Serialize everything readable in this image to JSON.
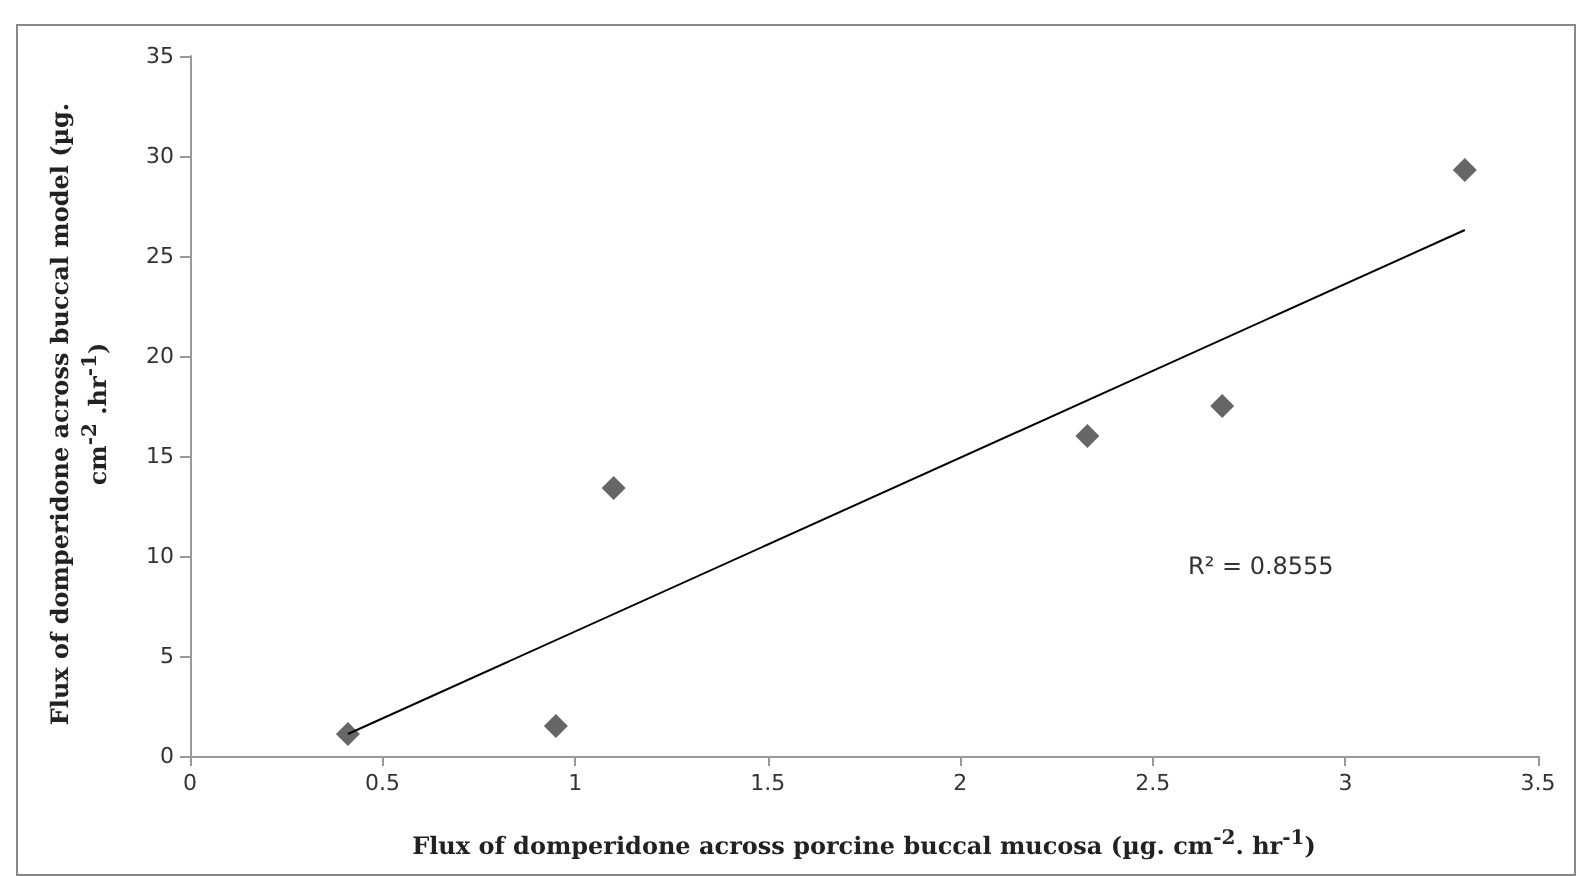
{
  "chart_data": {
    "type": "scatter",
    "xlabel": "Flux of domperidone across porcine buccal mucosa (µg. cm$^{-2}$. hr$^{-1}$)",
    "ylabel": "Flux of domperidone across buccal model (µg. cm$^{-2}$ .hr$^{-1}$)",
    "annotations": [
      "R² = 0.8555"
    ],
    "series": [
      {
        "color": "#404040",
        "marker": "diamond",
        "x": [
          0.41,
          0.95,
          1.1,
          2.33,
          2.68,
          3.31
        ],
        "values": [
          1.1,
          1.5,
          13.4,
          16,
          17.5,
          29.3
        ]
      },
      {
        "type": "line",
        "color": "#000000",
        "marker": "none",
        "line_style": "solid",
        "x": [
          0.41,
          3.31
        ],
        "values": [
          1.1,
          26.3
        ]
      }
    ],
    "xlim": [
      0,
      3.5
    ],
    "xticks": [
      0,
      0.5,
      1,
      1.5,
      2,
      2.5,
      3,
      3.5
    ],
    "ylim": [
      0,
      35
    ],
    "yticks": [
      0,
      5,
      10,
      15,
      20,
      25,
      30,
      35
    ],
    "grid": false
  }
}
